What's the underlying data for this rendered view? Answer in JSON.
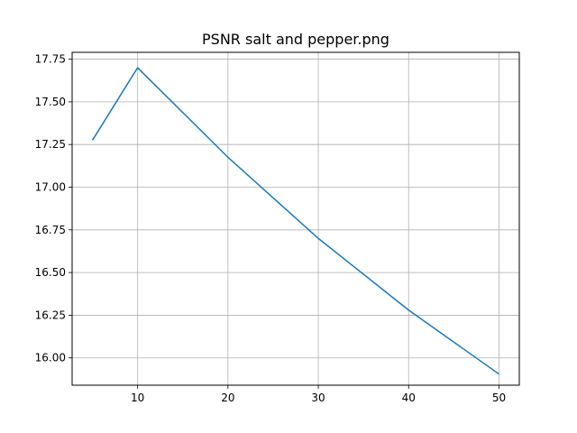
{
  "chart_data": {
    "type": "line",
    "title": "PSNR salt and pepper.png",
    "xlabel": "",
    "ylabel": "",
    "x": [
      5,
      10,
      20,
      30,
      40,
      50
    ],
    "series": [
      {
        "values": [
          17.275,
          17.7,
          17.175,
          16.7,
          16.28,
          15.905
        ]
      }
    ],
    "xlim": [
      2.75,
      52.25
    ],
    "ylim": [
      15.84,
      17.79
    ],
    "xticks": [
      10,
      20,
      30,
      40,
      50
    ],
    "yticks": [
      16.0,
      16.25,
      16.5,
      16.75,
      17.0,
      17.25,
      17.5,
      17.75
    ],
    "xtick_labels": [
      "10",
      "20",
      "30",
      "40",
      "50"
    ],
    "ytick_labels": [
      "16.00",
      "16.25",
      "16.50",
      "16.75",
      "17.00",
      "17.25",
      "17.50",
      "17.75"
    ],
    "grid": true,
    "legend": "none",
    "colors": {
      "line": "#1f77b4",
      "grid": "#b0b0b0",
      "axes": "#000000"
    }
  }
}
